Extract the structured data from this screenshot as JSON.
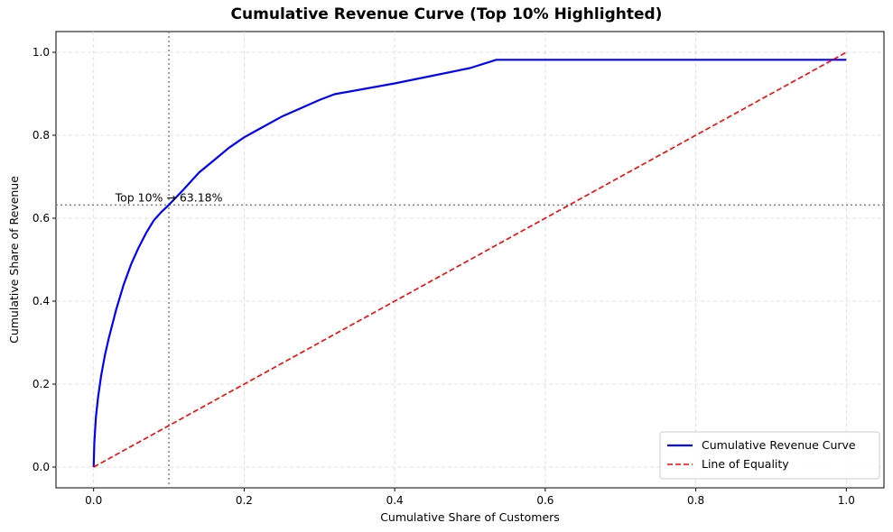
{
  "chart_data": {
    "type": "line",
    "title": "Cumulative Revenue Curve (Top 10% Highlighted)",
    "xlabel": "Cumulative Share of Customers",
    "ylabel": "Cumulative Share of Revenue",
    "xlim": [
      -0.05,
      1.05
    ],
    "ylim": [
      -0.05,
      1.05
    ],
    "xticks": [
      "0.0",
      "0.2",
      "0.4",
      "0.6",
      "0.8",
      "1.0"
    ],
    "yticks": [
      "0.0",
      "0.2",
      "0.4",
      "0.6",
      "0.8",
      "1.0"
    ],
    "grid": true,
    "legend_position": "lower-right",
    "series": [
      {
        "name": "Cumulative Revenue Curve",
        "color": "#0000ff",
        "style": "solid",
        "x": [
          0,
          0.001,
          0.003,
          0.006,
          0.01,
          0.015,
          0.02,
          0.03,
          0.04,
          0.05,
          0.06,
          0.07,
          0.08,
          0.09,
          0.1,
          0.12,
          0.14,
          0.16,
          0.18,
          0.2,
          0.215,
          0.25,
          0.3,
          0.32,
          0.4,
          0.5,
          0.535,
          0.6,
          0.8,
          1.0
        ],
        "y": [
          0,
          0.06,
          0.12,
          0.17,
          0.22,
          0.27,
          0.31,
          0.38,
          0.44,
          0.49,
          0.53,
          0.565,
          0.595,
          0.615,
          0.632,
          0.67,
          0.71,
          0.74,
          0.77,
          0.795,
          0.81,
          0.845,
          0.885,
          0.899,
          0.925,
          0.962,
          0.982,
          0.982,
          0.982,
          0.982
        ]
      },
      {
        "name": "Line of Equality",
        "color": "#ff0000",
        "style": "dashed",
        "x": [
          0,
          1
        ],
        "y": [
          0,
          1
        ]
      }
    ],
    "reference_lines": [
      {
        "axis": "x",
        "value": 0.1,
        "color": "#808080",
        "style": "dotted"
      },
      {
        "axis": "y",
        "value": 0.6318,
        "color": "#808080",
        "style": "dotted"
      }
    ],
    "annotations": [
      {
        "text": "Top 10% → 63.18%",
        "x": 0.1,
        "y": 0.6318
      }
    ]
  }
}
